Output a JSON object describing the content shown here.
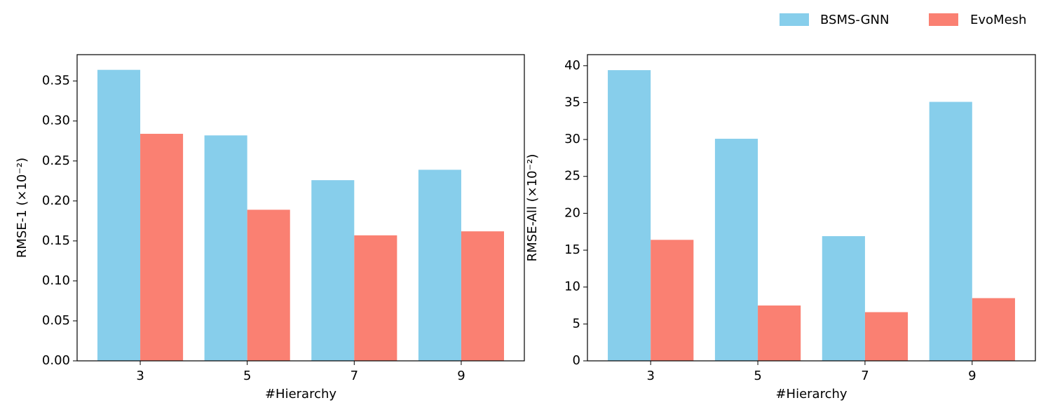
{
  "chart_data": [
    {
      "type": "bar",
      "xlabel": "#Hierarchy",
      "ylabel": "RMSE-1 (×10⁻²)",
      "categories": [
        "3",
        "5",
        "7",
        "9"
      ],
      "series": [
        {
          "name": "BSMS-GNN",
          "color": "#87ceeb",
          "values": [
            0.364,
            0.282,
            0.226,
            0.239
          ]
        },
        {
          "name": "EvoMesh",
          "color": "#fa8072",
          "values": [
            0.284,
            0.189,
            0.157,
            0.162
          ]
        }
      ],
      "ylim": [
        0,
        0.383
      ],
      "yticks": [
        {
          "value": 0,
          "label": "0.00"
        },
        0.05,
        {
          "value": 0.1,
          "label": "0.10"
        },
        0.15,
        {
          "value": 0.2,
          "label": "0.20"
        },
        0.25,
        {
          "value": 0.3,
          "label": "0.30"
        },
        0.35
      ],
      "grid": false
    },
    {
      "type": "bar",
      "xlabel": "#Hierarchy",
      "ylabel": "RMSE-All (×10⁻²)",
      "categories": [
        "3",
        "5",
        "7",
        "9"
      ],
      "series": [
        {
          "name": "BSMS-GNN",
          "color": "#87ceeb",
          "values": [
            39.4,
            30.1,
            16.9,
            35.1
          ]
        },
        {
          "name": "EvoMesh",
          "color": "#fa8072",
          "values": [
            16.4,
            7.5,
            6.6,
            8.5
          ]
        }
      ],
      "ylim": [
        0,
        41.5
      ],
      "yticks": [
        0,
        5,
        10,
        15,
        20,
        25,
        30,
        35,
        40
      ],
      "grid": false
    }
  ]
}
